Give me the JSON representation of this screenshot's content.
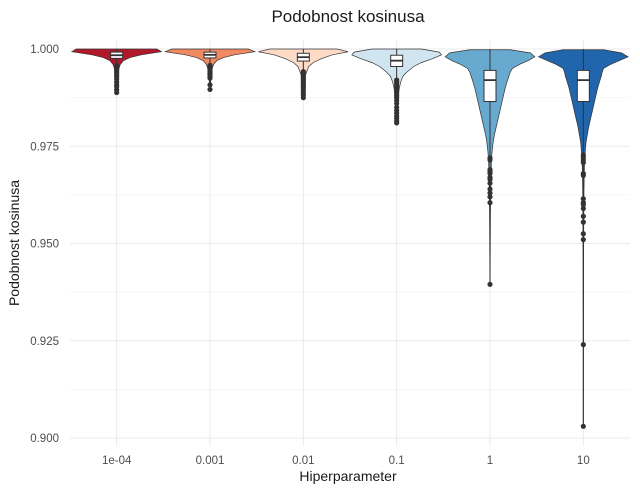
{
  "chart_data": {
    "type": "violin",
    "title": "Podobnost kosinusa",
    "xlabel": "Hiperparameter",
    "ylabel": "Podobnost kosinusa",
    "ylim": [
      0.899,
      1.0015
    ],
    "yticks": [
      1.0,
      0.975,
      0.95,
      0.925,
      0.9
    ],
    "ytick_labels": [
      "1.000",
      "0.975",
      "0.950",
      "0.925",
      "0.900"
    ],
    "categories": [
      "1e-04",
      "0.001",
      "0.01",
      "0.1",
      "1",
      "10"
    ],
    "grid": true,
    "legend": "none",
    "series": [
      {
        "category": "1e-04",
        "color": "#b2182b",
        "box": {
          "q1": 0.9976,
          "median": 0.9984,
          "q3": 0.9992,
          "whisker_low": 0.9962,
          "whisker_high": 1.0
        },
        "violin": [
          [
            1.0,
            0.9
          ],
          [
            0.9993,
            1.0
          ],
          [
            0.9985,
            0.55
          ],
          [
            0.9978,
            0.3
          ],
          [
            0.997,
            0.15
          ],
          [
            0.996,
            0.08
          ],
          [
            0.995,
            0.05
          ],
          [
            0.994,
            0.04
          ],
          [
            0.993,
            0.03
          ],
          [
            0.9915,
            0.02
          ],
          [
            0.99,
            0.015
          ],
          [
            0.9885,
            0.01
          ]
        ],
        "outliers": [
          0.9957,
          0.9953,
          0.995,
          0.9946,
          0.9942,
          0.9938,
          0.9933,
          0.9928,
          0.9922,
          0.9915,
          0.9908,
          0.9903,
          0.9895,
          0.9888
        ]
      },
      {
        "category": "0.001",
        "color": "#ef8a62",
        "box": {
          "q1": 0.9977,
          "median": 0.9985,
          "q3": 0.9992,
          "whisker_low": 0.9962,
          "whisker_high": 1.0
        },
        "violin": [
          [
            1.0,
            0.85
          ],
          [
            0.9993,
            1.0
          ],
          [
            0.9985,
            0.55
          ],
          [
            0.9978,
            0.3
          ],
          [
            0.997,
            0.15
          ],
          [
            0.996,
            0.08
          ],
          [
            0.995,
            0.05
          ],
          [
            0.994,
            0.03
          ],
          [
            0.9925,
            0.02
          ],
          [
            0.9905,
            0.01
          ],
          [
            0.9895,
            0.008
          ]
        ],
        "outliers": [
          0.9958,
          0.9954,
          0.995,
          0.9946,
          0.9942,
          0.9938,
          0.9934,
          0.993,
          0.9925,
          0.9908,
          0.9896
        ]
      },
      {
        "category": "0.01",
        "color": "#fddbc7",
        "box": {
          "q1": 0.9969,
          "median": 0.9979,
          "q3": 0.9989,
          "whisker_low": 0.9945,
          "whisker_high": 1.0
        },
        "violin": [
          [
            1.0,
            0.75
          ],
          [
            0.9993,
            1.0
          ],
          [
            0.9985,
            0.65
          ],
          [
            0.9975,
            0.4
          ],
          [
            0.9965,
            0.22
          ],
          [
            0.9955,
            0.12
          ],
          [
            0.994,
            0.07
          ],
          [
            0.993,
            0.04
          ],
          [
            0.9915,
            0.025
          ],
          [
            0.99,
            0.015
          ],
          [
            0.9885,
            0.01
          ],
          [
            0.9875,
            0.008
          ]
        ],
        "outliers": [
          0.9942,
          0.9938,
          0.9934,
          0.993,
          0.9926,
          0.9922,
          0.9918,
          0.9914,
          0.991,
          0.9905,
          0.99,
          0.9895,
          0.9888,
          0.9882,
          0.9875
        ]
      },
      {
        "category": "0.1",
        "color": "#d1e5f0",
        "box": {
          "q1": 0.9955,
          "median": 0.997,
          "q3": 0.9984,
          "whisker_low": 0.9925,
          "whisker_high": 1.0
        },
        "violin": [
          [
            1.0,
            0.55
          ],
          [
            0.9992,
            0.95
          ],
          [
            0.9985,
            1.0
          ],
          [
            0.9975,
            0.8
          ],
          [
            0.9965,
            0.55
          ],
          [
            0.9955,
            0.38
          ],
          [
            0.994,
            0.22
          ],
          [
            0.993,
            0.14
          ],
          [
            0.9915,
            0.09
          ],
          [
            0.99,
            0.06
          ],
          [
            0.9885,
            0.04
          ],
          [
            0.987,
            0.025
          ],
          [
            0.9855,
            0.018
          ],
          [
            0.984,
            0.012
          ],
          [
            0.9825,
            0.01
          ],
          [
            0.981,
            0.008
          ]
        ],
        "outliers": [
          0.992,
          0.9915,
          0.991,
          0.9905,
          0.99,
          0.9895,
          0.989,
          0.9885,
          0.988,
          0.9875,
          0.9868,
          0.986,
          0.985,
          0.9842,
          0.9835,
          0.9828,
          0.9822,
          0.9815,
          0.981
        ]
      },
      {
        "category": "1",
        "color": "#67a9cf",
        "box": {
          "q1": 0.9865,
          "median": 0.992,
          "q3": 0.9945,
          "whisker_low": 0.9785,
          "whisker_high": 1.0
        },
        "violin": [
          [
            0.9998,
            0.45
          ],
          [
            0.999,
            0.9
          ],
          [
            0.998,
            1.0
          ],
          [
            0.997,
            0.85
          ],
          [
            0.996,
            0.65
          ],
          [
            0.995,
            0.5
          ],
          [
            0.994,
            0.45
          ],
          [
            0.993,
            0.42
          ],
          [
            0.9915,
            0.38
          ],
          [
            0.99,
            0.34
          ],
          [
            0.988,
            0.3
          ],
          [
            0.986,
            0.26
          ],
          [
            0.984,
            0.22
          ],
          [
            0.982,
            0.18
          ],
          [
            0.98,
            0.14
          ],
          [
            0.978,
            0.1
          ],
          [
            0.976,
            0.07
          ],
          [
            0.974,
            0.05
          ],
          [
            0.972,
            0.035
          ],
          [
            0.968,
            0.022
          ],
          [
            0.963,
            0.015
          ],
          [
            0.957,
            0.01
          ],
          [
            0.95,
            0.007
          ],
          [
            0.945,
            0.005
          ],
          [
            0.9395,
            0.004
          ]
        ],
        "outliers": [
          0.972,
          0.9715,
          0.969,
          0.9685,
          0.968,
          0.967,
          0.9665,
          0.9655,
          0.964,
          0.963,
          0.962,
          0.9605,
          0.9395
        ]
      },
      {
        "category": "10",
        "color": "#2166ac",
        "box": {
          "q1": 0.9865,
          "median": 0.992,
          "q3": 0.9945,
          "whisker_low": 0.9785,
          "whisker_high": 1.0
        },
        "violin": [
          [
            0.9998,
            0.45
          ],
          [
            0.999,
            0.85
          ],
          [
            0.998,
            1.0
          ],
          [
            0.997,
            0.8
          ],
          [
            0.996,
            0.6
          ],
          [
            0.995,
            0.45
          ],
          [
            0.994,
            0.42
          ],
          [
            0.993,
            0.4
          ],
          [
            0.9915,
            0.36
          ],
          [
            0.99,
            0.32
          ],
          [
            0.988,
            0.28
          ],
          [
            0.986,
            0.24
          ],
          [
            0.984,
            0.2
          ],
          [
            0.982,
            0.16
          ],
          [
            0.98,
            0.12
          ],
          [
            0.978,
            0.09
          ],
          [
            0.976,
            0.06
          ],
          [
            0.974,
            0.045
          ],
          [
            0.972,
            0.03
          ],
          [
            0.968,
            0.02
          ],
          [
            0.962,
            0.013
          ],
          [
            0.955,
            0.009
          ],
          [
            0.945,
            0.006
          ],
          [
            0.93,
            0.004
          ],
          [
            0.915,
            0.003
          ],
          [
            0.903,
            0.002
          ]
        ],
        "outliers": [
          0.9728,
          0.9722,
          0.9715,
          0.9708,
          0.968,
          0.9675,
          0.9615,
          0.9605,
          0.96,
          0.959,
          0.957,
          0.9555,
          0.9525,
          0.951,
          0.924,
          0.903
        ]
      }
    ]
  }
}
